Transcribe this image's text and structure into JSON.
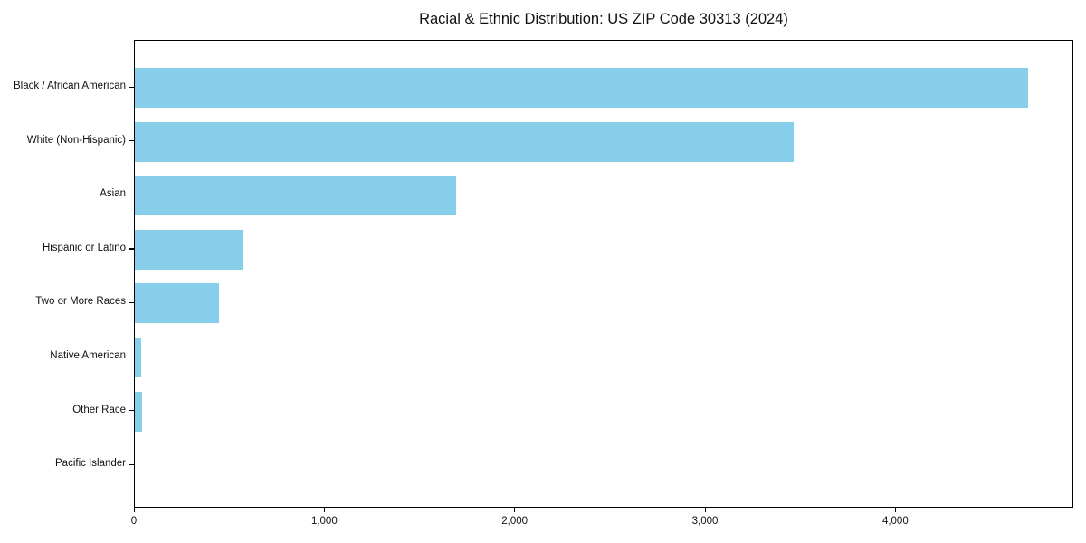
{
  "figure": {
    "background_color": "#ffffff",
    "text_color": "#111111",
    "frame_color": "#000000"
  },
  "chart_data": {
    "type": "bar",
    "orientation": "horizontal",
    "title": "Racial & Ethnic Distribution: US ZIP Code 30313 (2024)",
    "categories": [
      "Black / African American",
      "White (Non-Hispanic)",
      "Asian",
      "Hispanic or Latino",
      "Two or More Races",
      "Native American",
      "Other Race",
      "Pacific Islander"
    ],
    "values": [
      4700,
      3470,
      1690,
      565,
      445,
      35,
      38,
      0
    ],
    "xlabel": "",
    "ylabel": "",
    "xlim": [
      0,
      4935
    ],
    "xticks": {
      "values": [
        0,
        1000,
        2000,
        3000,
        4000
      ],
      "labels": [
        "0",
        "1,000",
        "2,000",
        "3,000",
        "4,000"
      ]
    },
    "bar_color": "#87CEEB",
    "grid": false,
    "legend": null
  }
}
